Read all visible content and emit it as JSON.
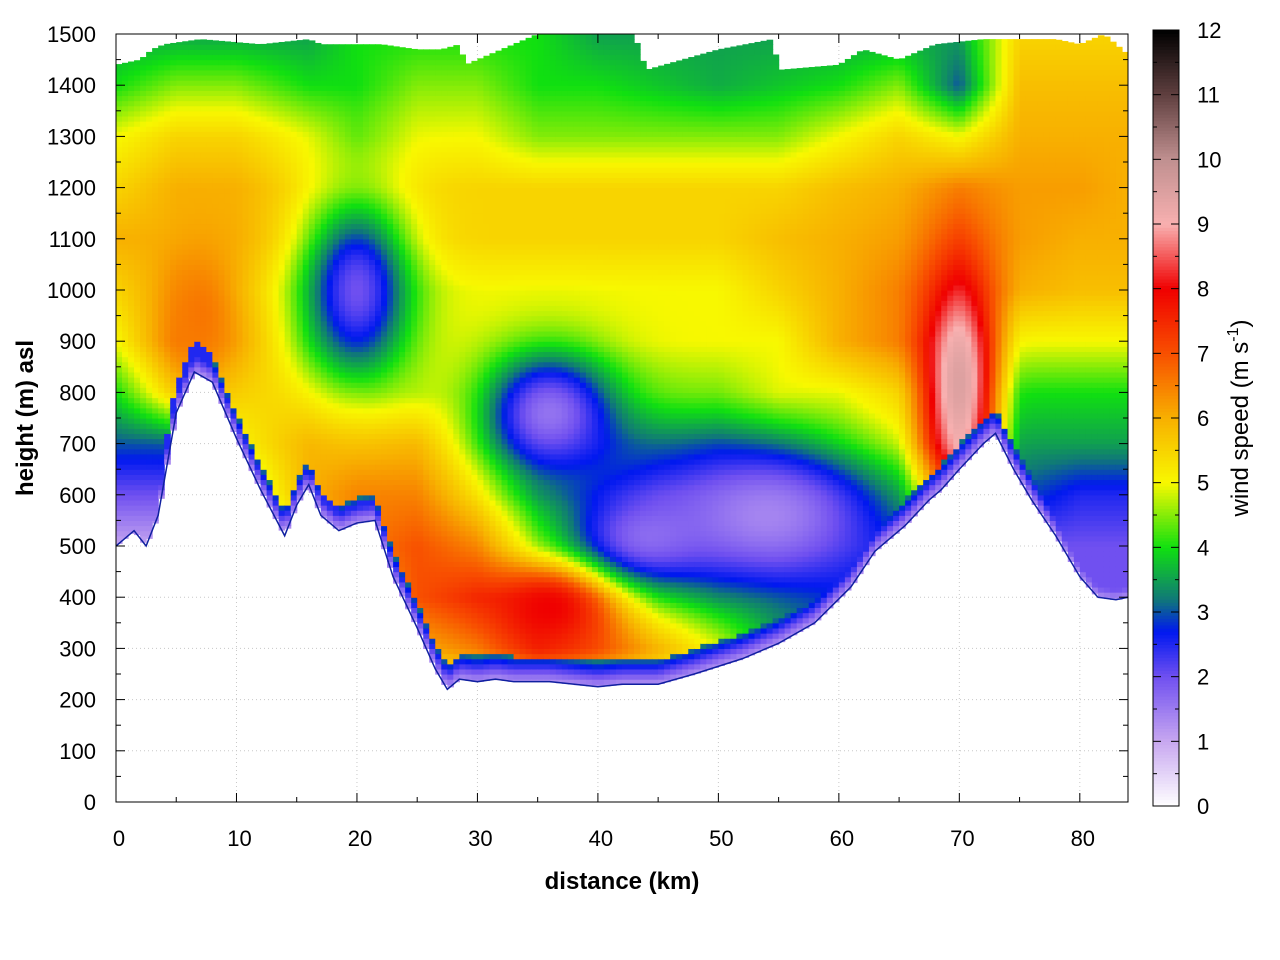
{
  "chart_data": {
    "type": "heatmap",
    "subtype": "vertical cross-section (filled contour)",
    "xlabel": "distance (km)",
    "ylabel": "height (m) asl",
    "colorbar_label": "wind speed (m s",
    "colorbar_label_superscript": "-1",
    "colorbar_label_tail": ")",
    "xlim": [
      0,
      84
    ],
    "ylim": [
      0,
      1500
    ],
    "clim": [
      0,
      12
    ],
    "x_ticks": [
      0,
      10,
      20,
      30,
      40,
      50,
      60,
      70,
      80
    ],
    "y_ticks": [
      0,
      100,
      200,
      300,
      400,
      500,
      600,
      700,
      800,
      900,
      1000,
      1100,
      1200,
      1300,
      1400,
      1500
    ],
    "colorbar_ticks": [
      0,
      1,
      2,
      3,
      4,
      5,
      6,
      7,
      8,
      9,
      10,
      11,
      12
    ],
    "grid": true,
    "colormap": [
      {
        "value": 0,
        "color": "#ffffff"
      },
      {
        "value": 1,
        "color": "#c8a8f0"
      },
      {
        "value": 2,
        "color": "#7050f0"
      },
      {
        "value": 2.7,
        "color": "#0018f0"
      },
      {
        "value": 3.2,
        "color": "#107878"
      },
      {
        "value": 4,
        "color": "#10e010"
      },
      {
        "value": 5,
        "color": "#f8f800"
      },
      {
        "value": 6,
        "color": "#f8b000"
      },
      {
        "value": 7,
        "color": "#f85000"
      },
      {
        "value": 8,
        "color": "#f00000"
      },
      {
        "value": 9,
        "color": "#f8b0b0"
      },
      {
        "value": 10,
        "color": "#c09090"
      },
      {
        "value": 11,
        "color": "#604040"
      },
      {
        "value": 12,
        "color": "#000000"
      }
    ],
    "terrain": {
      "x": [
        0,
        1.5,
        2.5,
        3.5,
        5,
        6.5,
        8,
        10,
        12,
        14,
        15,
        16,
        17,
        18.5,
        20,
        21.5,
        23,
        25,
        26.5,
        27.5,
        28.5,
        30,
        31.5,
        33,
        36,
        40,
        42,
        45,
        48,
        52,
        55,
        58,
        61,
        63,
        65.5,
        67.5,
        68.5,
        70,
        72,
        73,
        74.5,
        76,
        78,
        80,
        81.5,
        83,
        84
      ],
      "y": [
        500,
        530,
        500,
        560,
        760,
        840,
        820,
        710,
        610,
        520,
        580,
        620,
        560,
        530,
        545,
        550,
        440,
        340,
        260,
        220,
        240,
        235,
        240,
        235,
        235,
        225,
        230,
        230,
        250,
        280,
        310,
        350,
        420,
        490,
        540,
        590,
        610,
        650,
        700,
        720,
        650,
        590,
        520,
        440,
        400,
        395,
        400
      ]
    },
    "top_boundary": {
      "x": [
        0,
        2,
        3,
        4,
        7,
        12,
        16,
        17,
        19,
        22,
        25,
        27,
        28.5,
        29,
        35,
        39,
        43,
        44,
        47,
        50,
        54.5,
        55,
        60,
        62,
        65,
        68,
        72,
        73,
        78,
        80,
        82,
        84
      ],
      "y": [
        1440,
        1450,
        1470,
        1480,
        1490,
        1480,
        1490,
        1480,
        1480,
        1480,
        1470,
        1470,
        1480,
        1440,
        1500,
        1500,
        1500,
        1430,
        1450,
        1470,
        1490,
        1430,
        1440,
        1470,
        1450,
        1480,
        1490,
        1490,
        1490,
        1480,
        1500,
        1460
      ]
    },
    "base_field": {
      "x": [
        0,
        5,
        10,
        16,
        20,
        25,
        30,
        35,
        40,
        45,
        50,
        55,
        60,
        65,
        70,
        75,
        80,
        84
      ],
      "y": [
        1500,
        1400,
        1300,
        1200,
        1100,
        1000,
        900,
        800,
        700,
        600,
        500,
        400,
        300,
        200
      ],
      "wind_speed": [
        [
          3.5,
          3.5,
          3.5,
          3.5,
          4,
          4,
          4,
          4,
          3.5,
          3.5,
          3.5,
          3.5,
          3.5,
          3.5,
          3.5,
          5.5,
          5.5,
          5.5
        ],
        [
          4,
          4.5,
          4.5,
          4,
          4,
          4.5,
          4.5,
          4,
          4,
          3.8,
          3.6,
          3.8,
          4,
          4.5,
          3,
          5.8,
          5.8,
          5.8
        ],
        [
          5,
          5.5,
          5.5,
          5,
          4.5,
          5,
          5,
          4.5,
          4.5,
          4.5,
          4.5,
          4.5,
          5,
          5.5,
          5,
          6,
          6,
          6
        ],
        [
          5.5,
          6,
          6,
          5.5,
          5.5,
          5.5,
          5.5,
          5.5,
          5.5,
          5.5,
          5.5,
          5.5,
          5.8,
          6,
          6.5,
          6.2,
          6.2,
          6
        ],
        [
          6,
          6,
          6,
          5.5,
          5.5,
          5.5,
          5.5,
          5.5,
          5.5,
          5.5,
          5.5,
          5.8,
          6,
          6.2,
          7,
          6.2,
          6,
          6
        ],
        [
          5.5,
          6.2,
          5.8,
          5,
          5,
          5,
          5,
          5,
          5,
          5,
          5,
          5.5,
          6,
          6.5,
          7.5,
          6,
          5.8,
          5.8
        ],
        [
          5,
          6.5,
          6,
          5,
          5,
          5,
          5,
          5,
          5,
          5,
          5,
          5,
          6,
          6.5,
          8,
          5,
          5,
          5
        ],
        [
          4,
          5.5,
          5.5,
          5.5,
          5.5,
          5,
          5,
          4.5,
          4.5,
          4.5,
          4.5,
          5,
          5,
          5.5,
          8,
          4,
          4,
          4
        ],
        [
          3,
          3,
          5,
          6,
          6,
          6,
          5,
          4,
          3.5,
          3.5,
          3.5,
          4,
          4.5,
          5,
          8.5,
          3.5,
          3.5,
          3.5
        ],
        [
          2,
          2,
          4,
          6,
          6.5,
          6.5,
          5.5,
          4,
          3.5,
          3,
          3,
          3,
          3.5,
          4,
          7,
          3,
          2.5,
          2.5
        ],
        [
          1,
          1,
          3,
          5,
          6.5,
          7,
          6.5,
          5,
          4.5,
          4,
          3.5,
          3,
          3,
          3,
          5,
          2,
          2,
          2
        ],
        [
          1,
          1,
          2,
          4,
          5.5,
          7,
          7.5,
          7.5,
          7,
          5,
          4,
          3.5,
          3,
          3,
          3,
          2,
          2,
          2
        ],
        [
          1,
          1,
          1,
          3,
          4.5,
          6,
          6.5,
          7.5,
          7,
          6,
          5,
          3.5,
          3,
          3,
          3,
          2,
          2,
          2
        ],
        [
          1,
          1,
          1,
          2,
          3,
          4.5,
          4.5,
          4.5,
          4.5,
          4.5,
          4,
          3.5,
          3,
          3,
          3,
          2,
          2,
          2
        ]
      ]
    },
    "features": [
      {
        "center_km": 20,
        "center_m": 1000,
        "radius_km": 4.5,
        "radius_m": 180,
        "wind_speed": 2
      },
      {
        "center_km": 36,
        "center_m": 760,
        "radius_km": 5.5,
        "radius_m": 120,
        "wind_speed": 1.6
      },
      {
        "center_km": 44,
        "center_m": 520,
        "radius_km": 6.5,
        "radius_m": 100,
        "wind_speed": 1.8
      },
      {
        "center_km": 54,
        "center_m": 560,
        "radius_km": 9,
        "radius_m": 130,
        "wind_speed": 1.4
      },
      {
        "center_km": 70,
        "center_m": 820,
        "radius_km": 2.5,
        "radius_m": 180,
        "wind_speed": 9.5
      },
      {
        "center_km": 7,
        "center_m": 950,
        "radius_km": 3,
        "radius_m": 130,
        "wind_speed": 6.6
      },
      {
        "center_km": 36,
        "center_m": 380,
        "radius_km": 4,
        "radius_m": 70,
        "wind_speed": 8
      }
    ],
    "near_ground_jets": [
      {
        "x_range_km": [
          17,
          22
        ],
        "y_from_ground_m": [
          0,
          40
        ],
        "wind_speed": 2.5
      },
      {
        "x_range_km": [
          3,
          8
        ],
        "y_from_ground_m": [
          0,
          60
        ],
        "wind_speed": 2.5
      }
    ]
  }
}
